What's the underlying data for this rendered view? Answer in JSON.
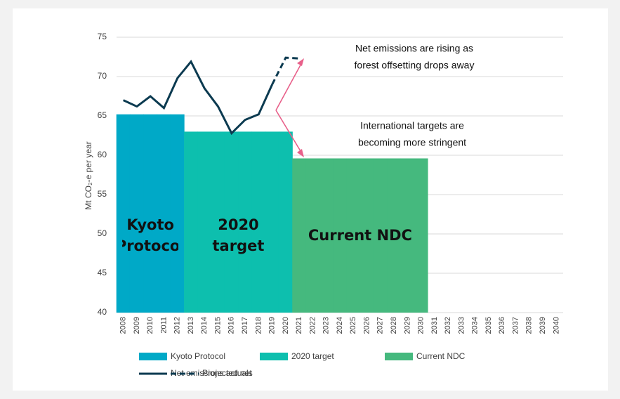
{
  "chart_data": {
    "type": "bar",
    "y_label": "Mt CO₂-e per year",
    "categories": [
      "2008",
      "2009",
      "2010",
      "2011",
      "2012",
      "2013",
      "2014",
      "2015",
      "2016",
      "2017",
      "2018",
      "2019",
      "2020",
      "2021",
      "2022",
      "2023",
      "2024",
      "2025",
      "2026",
      "2027",
      "2028",
      "2029",
      "2030",
      "2031",
      "2032",
      "2033",
      "2034",
      "2035",
      "2036",
      "2037",
      "2038",
      "2039",
      "2040"
    ],
    "ylim": [
      40,
      75
    ],
    "yticks": [
      40,
      45,
      50,
      55,
      60,
      65,
      70,
      75
    ],
    "grid": true,
    "legend": "bottom",
    "series": [
      {
        "name": "Kyoto Protocol",
        "type": "bar",
        "color": "#00a9c7",
        "values": [
          65.2,
          65.2,
          65.2,
          65.2,
          65.2,
          null,
          null,
          null,
          null,
          null,
          null,
          null,
          null,
          null,
          null,
          null,
          null,
          null,
          null,
          null,
          null,
          null,
          null,
          null,
          null,
          null,
          null,
          null,
          null,
          null,
          null,
          null,
          null
        ]
      },
      {
        "name": "2020 target",
        "type": "bar",
        "color": "#0dbfae",
        "values": [
          null,
          null,
          null,
          null,
          null,
          63,
          63,
          63,
          63,
          63,
          63,
          63,
          63,
          null,
          null,
          null,
          null,
          null,
          null,
          null,
          null,
          null,
          null,
          null,
          null,
          null,
          null,
          null,
          null,
          null,
          null,
          null,
          null
        ]
      },
      {
        "name": "Current NDC",
        "type": "bar",
        "color": "#45b97e",
        "values": [
          null,
          null,
          null,
          null,
          null,
          null,
          null,
          null,
          null,
          null,
          null,
          null,
          null,
          59.6,
          59.6,
          59.6,
          59.6,
          59.6,
          59.6,
          59.6,
          59.6,
          59.6,
          59.6,
          null,
          null,
          null,
          null,
          null,
          null,
          null,
          null,
          null,
          null
        ]
      },
      {
        "name": "Net emissions actuals",
        "type": "line",
        "color": "#0b3a50",
        "dash": false,
        "values": [
          67.0,
          66.2,
          67.5,
          66.0,
          69.8,
          71.9,
          68.5,
          66.2,
          62.8,
          64.5,
          65.2,
          69.0,
          null,
          null,
          null,
          null,
          null,
          null,
          null,
          null,
          null,
          null,
          null,
          null,
          null,
          null,
          null,
          null,
          null,
          null,
          null,
          null,
          null
        ]
      },
      {
        "name": "Projected net",
        "type": "line",
        "color": "#0b3a50",
        "dash": true,
        "values": [
          null,
          null,
          null,
          null,
          null,
          null,
          null,
          null,
          null,
          null,
          null,
          69.0,
          72.4,
          72.3,
          null,
          null,
          null,
          null,
          null,
          null,
          null,
          null,
          null,
          null,
          null,
          null,
          null,
          null,
          null,
          null,
          null,
          null,
          null
        ]
      }
    ],
    "annotations": [
      {
        "lines": [
          "Net emissions are rising as",
          "forest offsetting drops away"
        ]
      },
      {
        "lines": [
          "International targets are",
          "becoming more stringent"
        ]
      }
    ]
  }
}
